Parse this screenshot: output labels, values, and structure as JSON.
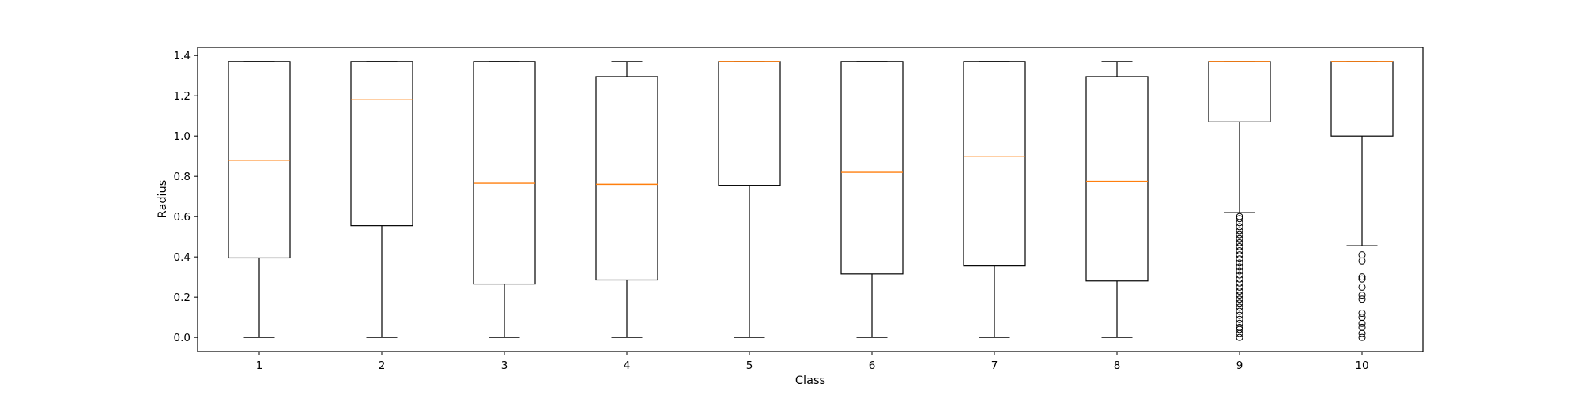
{
  "chart_data": {
    "type": "box",
    "xlabel": "Class",
    "ylabel": "Radius",
    "ylim": [
      -0.07,
      1.44
    ],
    "yticks": [
      "0.0",
      "0.2",
      "0.4",
      "0.6",
      "0.8",
      "1.0",
      "1.2",
      "1.4"
    ],
    "categories": [
      "1",
      "2",
      "3",
      "4",
      "5",
      "6",
      "7",
      "8",
      "9",
      "10"
    ],
    "boxes": [
      {
        "whisker_low": 0.0,
        "q1": 0.395,
        "median": 0.88,
        "q3": 1.37,
        "whisker_high": 1.37,
        "fliers": []
      },
      {
        "whisker_low": 0.0,
        "q1": 0.555,
        "median": 1.18,
        "q3": 1.37,
        "whisker_high": 1.37,
        "fliers": []
      },
      {
        "whisker_low": 0.0,
        "q1": 0.265,
        "median": 0.765,
        "q3": 1.37,
        "whisker_high": 1.37,
        "fliers": []
      },
      {
        "whisker_low": 0.0,
        "q1": 0.285,
        "median": 0.76,
        "q3": 1.295,
        "whisker_high": 1.37,
        "fliers": []
      },
      {
        "whisker_low": 0.0,
        "q1": 0.755,
        "median": 1.37,
        "q3": 1.37,
        "whisker_high": 1.37,
        "fliers": []
      },
      {
        "whisker_low": 0.0,
        "q1": 0.315,
        "median": 0.82,
        "q3": 1.37,
        "whisker_high": 1.37,
        "fliers": []
      },
      {
        "whisker_low": 0.0,
        "q1": 0.355,
        "median": 0.9,
        "q3": 1.37,
        "whisker_high": 1.37,
        "fliers": []
      },
      {
        "whisker_low": 0.0,
        "q1": 0.28,
        "median": 0.775,
        "q3": 1.295,
        "whisker_high": 1.37,
        "fliers": []
      },
      {
        "whisker_low": 0.62,
        "q1": 1.07,
        "median": 1.37,
        "q3": 1.37,
        "whisker_high": 1.37,
        "fliers": [
          0.0,
          0.02,
          0.04,
          0.05,
          0.07,
          0.09,
          0.11,
          0.13,
          0.15,
          0.17,
          0.19,
          0.21,
          0.23,
          0.25,
          0.27,
          0.29,
          0.31,
          0.33,
          0.35,
          0.37,
          0.39,
          0.41,
          0.43,
          0.45,
          0.47,
          0.49,
          0.51,
          0.53,
          0.55,
          0.57,
          0.59,
          0.6
        ]
      },
      {
        "whisker_low": 0.455,
        "q1": 1.0,
        "median": 1.37,
        "q3": 1.37,
        "whisker_high": 1.37,
        "fliers": [
          0.0,
          0.02,
          0.05,
          0.07,
          0.1,
          0.12,
          0.19,
          0.21,
          0.25,
          0.29,
          0.3,
          0.38,
          0.41
        ]
      }
    ],
    "colors": {
      "box": "#000000",
      "median": "#ff7f0e",
      "flier": "#000000",
      "background": "#ffffff"
    },
    "grid": false,
    "legend": "none"
  }
}
